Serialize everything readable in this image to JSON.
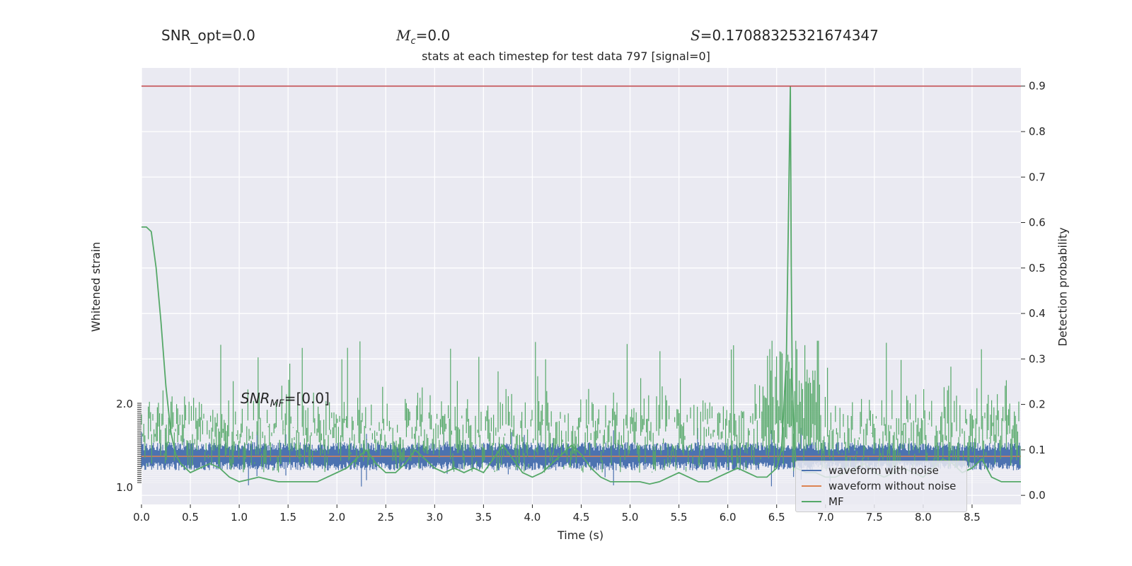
{
  "header": {
    "snr_opt": "SNR_opt=0.0",
    "mc_sym": "M",
    "mc_sub": "c",
    "mc_val": "=0.0",
    "s_sym": "S",
    "s_val": "=0.17088325321674347"
  },
  "chart_data": {
    "type": "line",
    "title": "stats at each timestep for test data 797 [signal=0]",
    "xlabel": "Time (s)",
    "ylabel_left": "Whitened strain",
    "ylabel_right": "Detection probability",
    "xlim": [
      0.0,
      9.0
    ],
    "ylim_right": [
      -0.02,
      0.94
    ],
    "x_ticks": [
      "0.0",
      "0.5",
      "1.0",
      "1.5",
      "2.0",
      "2.5",
      "3.0",
      "3.5",
      "4.0",
      "4.5",
      "5.0",
      "5.5",
      "6.0",
      "6.5",
      "7.0",
      "7.5",
      "8.0",
      "8.5"
    ],
    "y_right_ticks": [
      "0.0",
      "0.1",
      "0.2",
      "0.3",
      "0.4",
      "0.5",
      "0.6",
      "0.7",
      "0.8",
      "0.9"
    ],
    "y_left_visible_ticks": [
      "2.0",
      "1.0"
    ],
    "threshold": 0.9,
    "threshold_color": "#c44e52",
    "annotation": {
      "sym": "SNR",
      "sub": "MF",
      "val": "=[0.0]"
    },
    "grid": true,
    "legend_position": "lower-right",
    "series": [
      {
        "name": "waveform with noise",
        "color": "#4c72b0"
      },
      {
        "name": "waveform without noise",
        "color": "#dd8452"
      },
      {
        "name": "MF",
        "color": "#55a868"
      }
    ],
    "prob_curve": {
      "x": [
        0.0,
        0.05,
        0.1,
        0.15,
        0.2,
        0.25,
        0.3,
        0.35,
        0.4,
        0.45,
        0.5,
        0.6,
        0.7,
        0.8,
        0.9,
        1.0,
        1.1,
        1.2,
        1.3,
        1.4,
        1.5,
        1.6,
        1.7,
        1.8,
        1.9,
        2.0,
        2.1,
        2.2,
        2.3,
        2.4,
        2.5,
        2.6,
        2.7,
        2.8,
        2.9,
        3.0,
        3.1,
        3.2,
        3.3,
        3.4,
        3.5,
        3.6,
        3.7,
        3.8,
        3.9,
        4.0,
        4.1,
        4.2,
        4.3,
        4.4,
        4.5,
        4.6,
        4.7,
        4.8,
        4.9,
        5.0,
        5.1,
        5.2,
        5.3,
        5.4,
        5.5,
        5.6,
        5.7,
        5.8,
        5.9,
        6.0,
        6.1,
        6.2,
        6.3,
        6.4,
        6.5,
        6.55,
        6.6,
        6.62,
        6.64,
        6.65,
        6.66,
        6.68,
        6.7,
        6.8,
        6.9,
        7.0,
        7.1,
        7.2,
        7.3,
        7.4,
        7.5,
        7.6,
        7.7,
        7.8,
        7.9,
        8.0,
        8.1,
        8.2,
        8.3,
        8.4,
        8.5,
        8.6,
        8.7,
        8.8,
        8.9,
        9.0
      ],
      "y": [
        0.59,
        0.59,
        0.58,
        0.5,
        0.38,
        0.24,
        0.14,
        0.09,
        0.07,
        0.06,
        0.05,
        0.06,
        0.07,
        0.06,
        0.04,
        0.03,
        0.035,
        0.04,
        0.035,
        0.03,
        0.03,
        0.03,
        0.03,
        0.03,
        0.04,
        0.05,
        0.06,
        0.08,
        0.1,
        0.07,
        0.05,
        0.05,
        0.07,
        0.1,
        0.08,
        0.06,
        0.05,
        0.06,
        0.05,
        0.06,
        0.05,
        0.08,
        0.11,
        0.08,
        0.05,
        0.04,
        0.05,
        0.07,
        0.09,
        0.11,
        0.09,
        0.06,
        0.04,
        0.03,
        0.03,
        0.03,
        0.03,
        0.025,
        0.03,
        0.04,
        0.05,
        0.04,
        0.03,
        0.03,
        0.04,
        0.05,
        0.06,
        0.05,
        0.04,
        0.04,
        0.06,
        0.1,
        0.3,
        0.6,
        0.9,
        0.5,
        0.25,
        0.12,
        0.06,
        0.05,
        0.05,
        0.04,
        0.04,
        0.05,
        0.06,
        0.07,
        0.05,
        0.04,
        0.05,
        0.06,
        0.05,
        0.04,
        0.06,
        0.08,
        0.07,
        0.05,
        0.06,
        0.08,
        0.04,
        0.03,
        0.03,
        0.03
      ]
    }
  }
}
